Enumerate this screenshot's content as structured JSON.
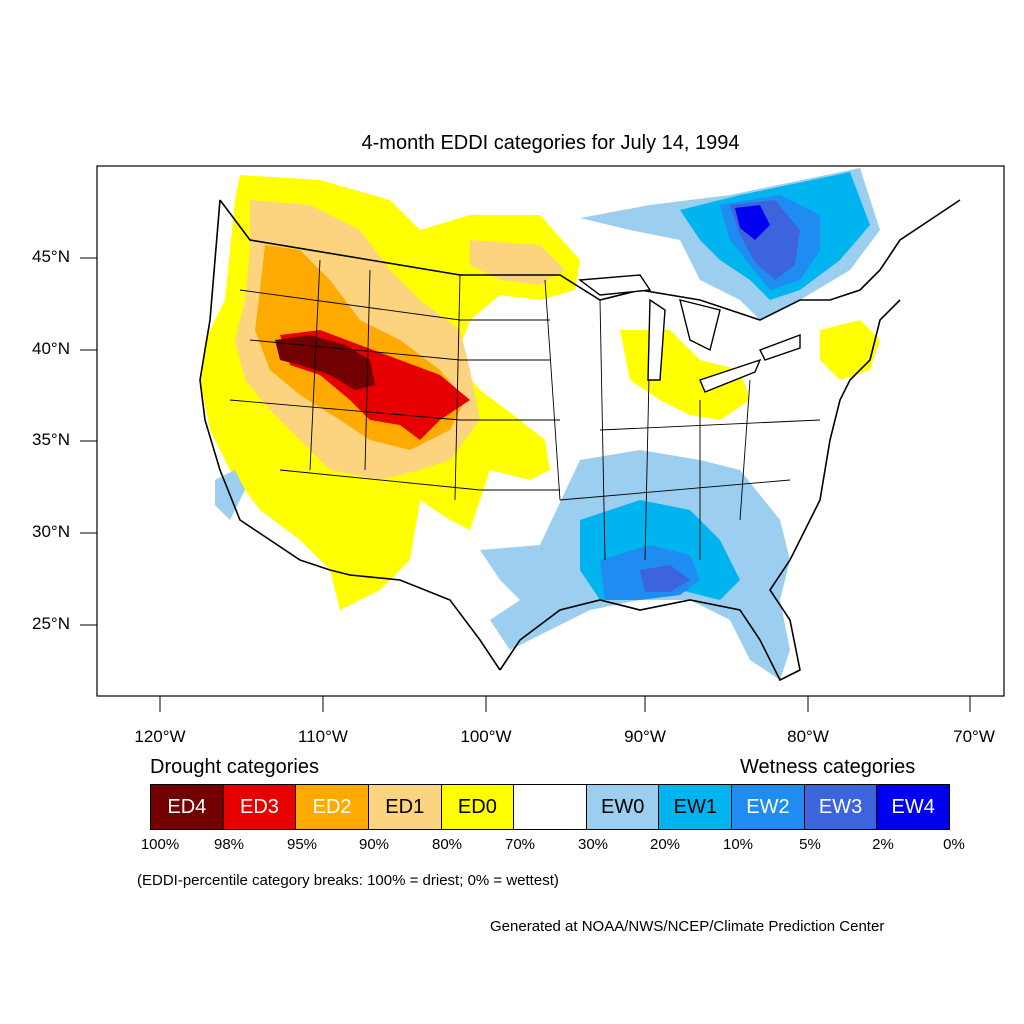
{
  "title": "4-month EDDI categories for July 14, 1994",
  "lat_labels": [
    "45°N",
    "40°N",
    "35°N",
    "30°N",
    "25°N"
  ],
  "lon_labels": [
    "120°W",
    "110°W",
    "100°W",
    "90°W",
    "80°W",
    "70°W"
  ],
  "legend": {
    "drought_heading": "Drought categories",
    "wetness_heading": "Wetness categories",
    "categories": [
      {
        "label": "ED4",
        "color": "#730000",
        "text_color": "#ffffff"
      },
      {
        "label": "ED3",
        "color": "#e60000",
        "text_color": "#ffffff"
      },
      {
        "label": "ED2",
        "color": "#ffaa00",
        "text_color": "#ffffff"
      },
      {
        "label": "ED1",
        "color": "#fcd37f",
        "text_color": "#000000"
      },
      {
        "label": "ED0",
        "color": "#ffff00",
        "text_color": "#000000"
      },
      {
        "label": "",
        "color": "#ffffff",
        "text_color": "#000000"
      },
      {
        "label": "EW0",
        "color": "#9ccef0",
        "text_color": "#000000"
      },
      {
        "label": "EW1",
        "color": "#00b4f0",
        "text_color": "#000000"
      },
      {
        "label": "EW2",
        "color": "#1e8cf0",
        "text_color": "#ffffff"
      },
      {
        "label": "EW3",
        "color": "#3c64dc",
        "text_color": "#ffffff"
      },
      {
        "label": "EW4",
        "color": "#0000f0",
        "text_color": "#ffffff"
      }
    ],
    "percentiles": [
      "100%",
      "98%",
      "95%",
      "90%",
      "80%",
      "70%",
      "30%",
      "20%",
      "10%",
      "5%",
      "2%",
      "0%"
    ]
  },
  "note": "(EDDI-percentile category breaks: 100% = driest; 0% = wettest)",
  "credit": "Generated at NOAA/NWS/NCEP/Climate Prediction Center"
}
